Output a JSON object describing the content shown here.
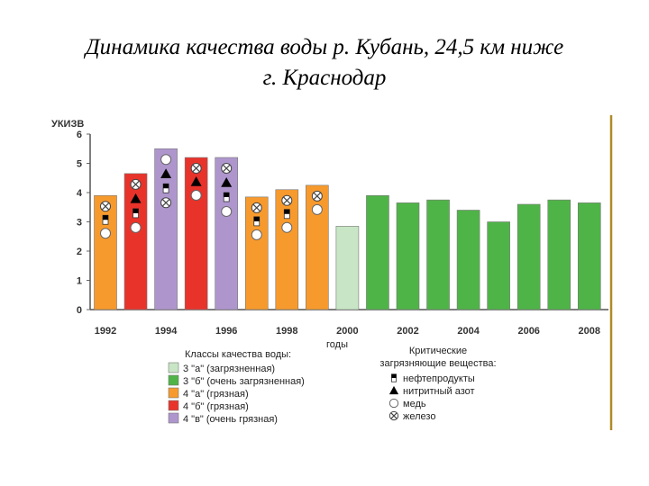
{
  "title_line1": "Динамика качества воды р. Кубань, 24,5 км ниже",
  "title_line2": "г. Краснодар",
  "chart_data": {
    "type": "bar",
    "ylabel": "УКИЗВ",
    "xlabel": "годы",
    "ylim": [
      0,
      6
    ],
    "yticks": [
      0,
      1,
      2,
      3,
      4,
      5,
      6
    ],
    "x_tick_labels": [
      "1992",
      "1994",
      "1996",
      "1998",
      "2000",
      "2002",
      "2004",
      "2006",
      "2008"
    ],
    "bars": [
      {
        "year": 1992,
        "value": 3.9,
        "class": "4a",
        "markers": [
          "iron",
          "oil",
          "copper"
        ]
      },
      {
        "year": 1993,
        "value": 4.65,
        "class": "4b",
        "markers": [
          "iron",
          "nitrite",
          "oil",
          "copper"
        ]
      },
      {
        "year": 1994,
        "value": 5.5,
        "class": "4v",
        "markers": [
          "copper",
          "nitrite",
          "oil",
          "iron"
        ]
      },
      {
        "year": 1995,
        "value": 5.2,
        "class": "4b",
        "markers": [
          "iron",
          "nitrite",
          "copper"
        ]
      },
      {
        "year": 1996,
        "value": 5.2,
        "class": "4v",
        "markers": [
          "iron",
          "nitrite",
          "oil",
          "copper"
        ]
      },
      {
        "year": 1997,
        "value": 3.85,
        "class": "4a",
        "markers": [
          "iron",
          "oil",
          "copper"
        ]
      },
      {
        "year": 1998,
        "value": 4.1,
        "class": "4a",
        "markers": [
          "iron",
          "oil",
          "copper"
        ]
      },
      {
        "year": 1999,
        "value": 4.25,
        "class": "4a",
        "markers": [
          "iron",
          "copper"
        ]
      },
      {
        "year": 2000,
        "value": 2.85,
        "class": "3a",
        "markers": []
      },
      {
        "year": 2001,
        "value": 3.9,
        "class": "3b",
        "markers": []
      },
      {
        "year": 2002,
        "value": 3.65,
        "class": "3b",
        "markers": []
      },
      {
        "year": 2003,
        "value": 3.75,
        "class": "3b",
        "markers": []
      },
      {
        "year": 2004,
        "value": 3.4,
        "class": "3b",
        "markers": []
      },
      {
        "year": 2005,
        "value": 3.0,
        "class": "3b",
        "markers": []
      },
      {
        "year": 2006,
        "value": 3.6,
        "class": "3b",
        "markers": []
      },
      {
        "year": 2007,
        "value": 3.75,
        "class": "3b",
        "markers": []
      },
      {
        "year": 2008,
        "value": 3.65,
        "class": "3b",
        "markers": []
      }
    ],
    "class_legend_title": "Классы качества воды:",
    "classes": [
      {
        "id": "3a",
        "label": "3 \"а\" (загрязненная)",
        "color": "#c8e6c5"
      },
      {
        "id": "3b",
        "label": "3 \"б\" (очень загрязненная)",
        "color": "#4fb447"
      },
      {
        "id": "4a",
        "label": "4 \"а\" (грязная)",
        "color": "#f79a2d"
      },
      {
        "id": "4b",
        "label": "4 \"б\" (грязная)",
        "color": "#e8332b"
      },
      {
        "id": "4v",
        "label": "4 \"в\" (очень грязная)",
        "color": "#ae96cd"
      }
    ],
    "pollutant_legend_title_1": "Критические",
    "pollutant_legend_title_2": "загрязняющие вещества:",
    "pollutants": [
      {
        "id": "oil",
        "label": "нефтепродукты"
      },
      {
        "id": "nitrite",
        "label": "нитритный азот"
      },
      {
        "id": "copper",
        "label": "медь"
      },
      {
        "id": "iron",
        "label": "железо"
      }
    ]
  }
}
